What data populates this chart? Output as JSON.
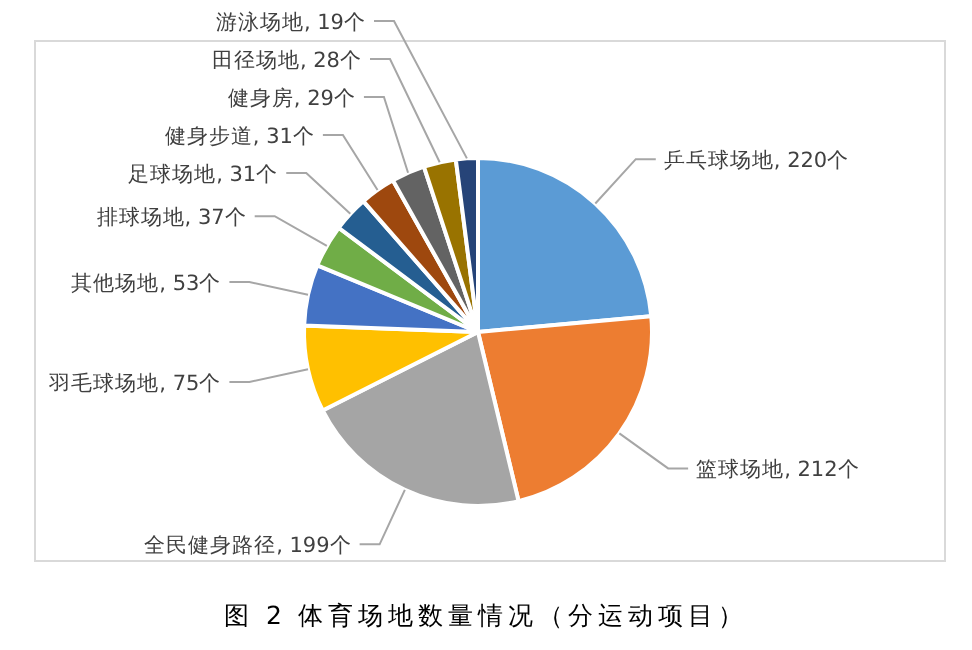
{
  "chart_data": {
    "type": "pie",
    "title": "图 2  体育场地数量情况（分运动项目）",
    "categories": [
      "乒乓球场地",
      "篮球场地",
      "全民健身路径",
      "羽毛球场地",
      "其他场地",
      "排球场地",
      "足球场地",
      "健身步道",
      "健身房",
      "田径场地",
      "游泳场地"
    ],
    "values": [
      220,
      212,
      199,
      75,
      53,
      37,
      31,
      31,
      29,
      28,
      19
    ],
    "colors": [
      "#5b9bd5",
      "#ed7d31",
      "#a5a5a5",
      "#ffc000",
      "#4472c4",
      "#70ad47",
      "#255e91",
      "#9e480e",
      "#636363",
      "#997300",
      "#264478"
    ],
    "value_labels": [
      "220个",
      "212个",
      "199个",
      "75个",
      "53个",
      "37个",
      "31个",
      "31个",
      "29个",
      "28个",
      "19个"
    ]
  }
}
